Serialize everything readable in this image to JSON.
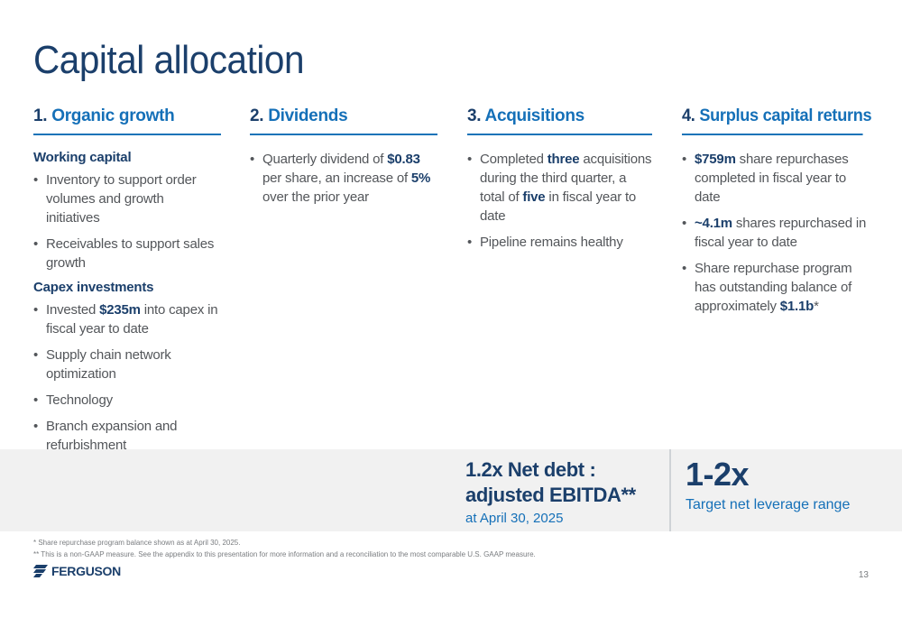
{
  "title": "Capital allocation",
  "columns": [
    {
      "num": "1.",
      "heading": "Organic growth",
      "sections": [
        {
          "subheading": "Working capital",
          "bullets": [
            [
              "Inventory to support order volumes and growth initiatives"
            ],
            [
              "Receivables to support sales growth"
            ]
          ]
        },
        {
          "subheading": "Capex investments",
          "bullets": [
            [
              "Invested ",
              "$235m",
              " into capex in fiscal year to date"
            ],
            [
              "Supply chain network optimization"
            ],
            [
              "Technology"
            ],
            [
              "Branch expansion and refurbishment"
            ]
          ]
        }
      ]
    },
    {
      "num": "2.",
      "heading": "Dividends",
      "sections": [
        {
          "subheading": "",
          "bullets": [
            [
              "Quarterly dividend of ",
              "$0.83",
              " per share, an increase of ",
              "5%",
              " over the prior year"
            ]
          ]
        }
      ]
    },
    {
      "num": "3.",
      "heading": "Acquisitions",
      "sections": [
        {
          "subheading": "",
          "bullets": [
            [
              "Completed ",
              "three",
              " acquisitions during the third quarter, a total of ",
              "five",
              " in fiscal year to date"
            ],
            [
              "Pipeline remains healthy"
            ]
          ]
        }
      ]
    },
    {
      "num": "4.",
      "heading": "Surplus capital returns",
      "sections": [
        {
          "subheading": "",
          "bullets": [
            [
              "",
              "$759m",
              " share repurchases completed in fiscal year to date"
            ],
            [
              "",
              "~4.1m",
              " shares repurchased in fiscal year to date"
            ],
            [
              "Share repurchase program has outstanding balance of approximately ",
              "$1.1b",
              "*"
            ]
          ]
        }
      ]
    }
  ],
  "band": {
    "net_debt_label": "1.2x Net debt : adjusted EBITDA**",
    "net_debt_date": "at April 30, 2025",
    "leverage_value": "1-2x",
    "leverage_label": "Target net leverage range"
  },
  "footnotes": {
    "fn1": "* Share repurchase program balance shown as at April 30, 2025.",
    "fn2": "** This is a non-GAAP measure. See the appendix to this presentation for more information and a reconciliation to the most comparable U.S. GAAP measure."
  },
  "logo_text": "FERGUSON",
  "page_number": "13",
  "colors": {
    "navy": "#1b3f6b",
    "accent_blue": "#1570b8",
    "band_gray": "#f1f1f1"
  }
}
